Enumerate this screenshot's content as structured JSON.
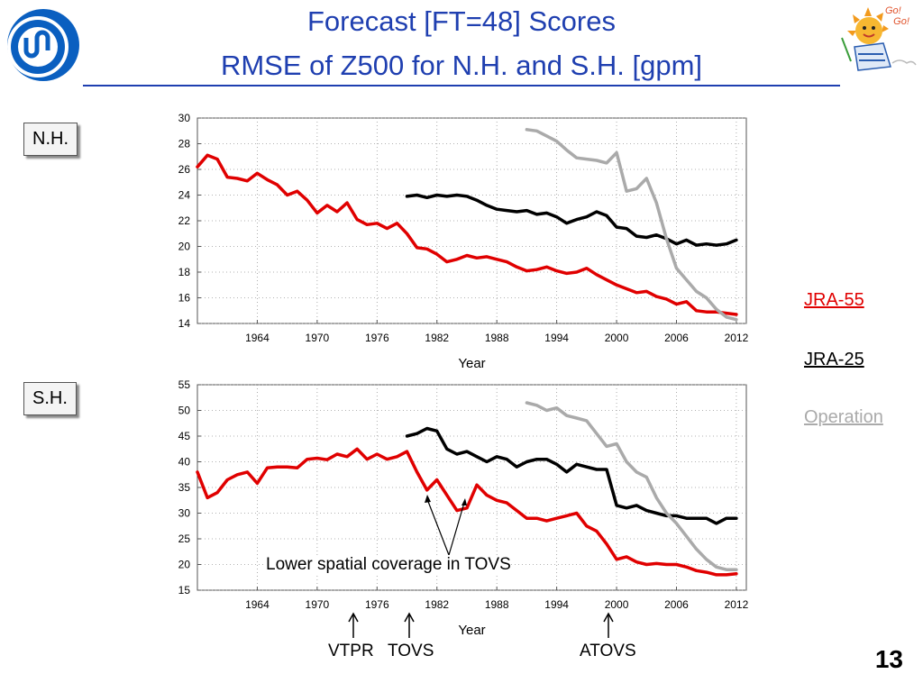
{
  "title": {
    "line1": "Forecast [FT=48] Scores",
    "line2": "RMSE of Z500 for N.H. and S.H. [gpm]"
  },
  "legend": {
    "jra55": {
      "label": "JRA-55",
      "color": "#e00000"
    },
    "jra25": {
      "label": "JRA-25",
      "color": "#000000"
    },
    "operation": {
      "label": "Operation",
      "color": "#aaaaaa"
    }
  },
  "annotations": {
    "tovs_note": "Lower spatial coverage in TOVS",
    "vtpr": "VTPR",
    "tovs": "TOVS",
    "atovs": "ATOVS"
  },
  "page_number": "13",
  "chart_data": [
    {
      "type": "line",
      "region_label": "N.H.",
      "xlabel": "Year",
      "ylabel": "",
      "xlim": [
        1958,
        2013
      ],
      "ylim": [
        14,
        30
      ],
      "xticks": [
        1964,
        1970,
        1976,
        1982,
        1988,
        1994,
        2000,
        2006,
        2012
      ],
      "yticks": [
        14,
        16,
        18,
        20,
        22,
        24,
        26,
        28,
        30
      ],
      "grid": true,
      "series": [
        {
          "name": "JRA-55",
          "color": "#e00000",
          "points": [
            [
              1958,
              26.2
            ],
            [
              1959,
              27.1
            ],
            [
              1960,
              26.8
            ],
            [
              1961,
              25.4
            ],
            [
              1962,
              25.3
            ],
            [
              1963,
              25.1
            ],
            [
              1964,
              25.7
            ],
            [
              1965,
              25.2
            ],
            [
              1966,
              24.8
            ],
            [
              1967,
              24.0
            ],
            [
              1968,
              24.3
            ],
            [
              1969,
              23.6
            ],
            [
              1970,
              22.6
            ],
            [
              1971,
              23.2
            ],
            [
              1972,
              22.7
            ],
            [
              1973,
              23.4
            ],
            [
              1974,
              22.1
            ],
            [
              1975,
              21.7
            ],
            [
              1976,
              21.8
            ],
            [
              1977,
              21.4
            ],
            [
              1978,
              21.8
            ],
            [
              1979,
              21.0
            ],
            [
              1980,
              19.9
            ],
            [
              1981,
              19.8
            ],
            [
              1982,
              19.4
            ],
            [
              1983,
              18.8
            ],
            [
              1984,
              19.0
            ],
            [
              1985,
              19.3
            ],
            [
              1986,
              19.1
            ],
            [
              1987,
              19.2
            ],
            [
              1988,
              19.0
            ],
            [
              1989,
              18.8
            ],
            [
              1990,
              18.4
            ],
            [
              1991,
              18.1
            ],
            [
              1992,
              18.2
            ],
            [
              1993,
              18.4
            ],
            [
              1994,
              18.1
            ],
            [
              1995,
              17.9
            ],
            [
              1996,
              18.0
            ],
            [
              1997,
              18.3
            ],
            [
              1998,
              17.8
            ],
            [
              1999,
              17.4
            ],
            [
              2000,
              17.0
            ],
            [
              2001,
              16.7
            ],
            [
              2002,
              16.4
            ],
            [
              2003,
              16.5
            ],
            [
              2004,
              16.1
            ],
            [
              2005,
              15.9
            ],
            [
              2006,
              15.5
            ],
            [
              2007,
              15.7
            ],
            [
              2008,
              15.0
            ],
            [
              2009,
              14.9
            ],
            [
              2010,
              14.9
            ],
            [
              2011,
              14.8
            ],
            [
              2012,
              14.7
            ]
          ]
        },
        {
          "name": "JRA-25",
          "color": "#000000",
          "points": [
            [
              1979,
              23.9
            ],
            [
              1980,
              24.0
            ],
            [
              1981,
              23.8
            ],
            [
              1982,
              24.0
            ],
            [
              1983,
              23.9
            ],
            [
              1984,
              24.0
            ],
            [
              1985,
              23.9
            ],
            [
              1986,
              23.6
            ],
            [
              1987,
              23.2
            ],
            [
              1988,
              22.9
            ],
            [
              1989,
              22.8
            ],
            [
              1990,
              22.7
            ],
            [
              1991,
              22.8
            ],
            [
              1992,
              22.5
            ],
            [
              1993,
              22.6
            ],
            [
              1994,
              22.3
            ],
            [
              1995,
              21.8
            ],
            [
              1996,
              22.1
            ],
            [
              1997,
              22.3
            ],
            [
              1998,
              22.7
            ],
            [
              1999,
              22.4
            ],
            [
              2000,
              21.5
            ],
            [
              2001,
              21.4
            ],
            [
              2002,
              20.8
            ],
            [
              2003,
              20.7
            ],
            [
              2004,
              20.9
            ],
            [
              2005,
              20.6
            ],
            [
              2006,
              20.2
            ],
            [
              2007,
              20.5
            ],
            [
              2008,
              20.1
            ],
            [
              2009,
              20.2
            ],
            [
              2010,
              20.1
            ],
            [
              2011,
              20.2
            ],
            [
              2012,
              20.5
            ]
          ]
        },
        {
          "name": "Operation",
          "color": "#aaaaaa",
          "points": [
            [
              1991,
              29.1
            ],
            [
              1992,
              29.0
            ],
            [
              1993,
              28.6
            ],
            [
              1994,
              28.2
            ],
            [
              1995,
              27.5
            ],
            [
              1996,
              26.9
            ],
            [
              1997,
              26.8
            ],
            [
              1998,
              26.7
            ],
            [
              1999,
              26.5
            ],
            [
              2000,
              27.3
            ],
            [
              2001,
              24.3
            ],
            [
              2002,
              24.5
            ],
            [
              2003,
              25.3
            ],
            [
              2004,
              23.4
            ],
            [
              2005,
              20.6
            ],
            [
              2006,
              18.3
            ],
            [
              2007,
              17.4
            ],
            [
              2008,
              16.5
            ],
            [
              2009,
              16.0
            ],
            [
              2010,
              15.1
            ],
            [
              2011,
              14.5
            ],
            [
              2012,
              14.3
            ]
          ]
        }
      ]
    },
    {
      "type": "line",
      "region_label": "S.H.",
      "xlabel": "Year",
      "ylabel": "",
      "xlim": [
        1958,
        2013
      ],
      "ylim": [
        15,
        55
      ],
      "xticks": [
        1964,
        1970,
        1976,
        1982,
        1988,
        1994,
        2000,
        2006,
        2012
      ],
      "yticks": [
        15,
        20,
        25,
        30,
        35,
        40,
        45,
        50,
        55
      ],
      "grid": true,
      "series": [
        {
          "name": "JRA-55",
          "color": "#e00000",
          "points": [
            [
              1958,
              38.0
            ],
            [
              1959,
              33.0
            ],
            [
              1960,
              34.0
            ],
            [
              1961,
              36.5
            ],
            [
              1962,
              37.5
            ],
            [
              1963,
              38.0
            ],
            [
              1964,
              35.8
            ],
            [
              1965,
              38.8
            ],
            [
              1966,
              39.0
            ],
            [
              1967,
              39.0
            ],
            [
              1968,
              38.8
            ],
            [
              1969,
              40.5
            ],
            [
              1970,
              40.7
            ],
            [
              1971,
              40.4
            ],
            [
              1972,
              41.5
            ],
            [
              1973,
              41.0
            ],
            [
              1974,
              42.5
            ],
            [
              1975,
              40.5
            ],
            [
              1976,
              41.5
            ],
            [
              1977,
              40.5
            ],
            [
              1978,
              41.0
            ],
            [
              1979,
              42.0
            ],
            [
              1980,
              38.0
            ],
            [
              1981,
              34.5
            ],
            [
              1982,
              36.5
            ],
            [
              1983,
              33.5
            ],
            [
              1984,
              30.5
            ],
            [
              1985,
              31.0
            ],
            [
              1986,
              35.5
            ],
            [
              1987,
              33.5
            ],
            [
              1988,
              32.5
            ],
            [
              1989,
              32.0
            ],
            [
              1990,
              30.5
            ],
            [
              1991,
              29.0
            ],
            [
              1992,
              29.0
            ],
            [
              1993,
              28.5
            ],
            [
              1994,
              29.0
            ],
            [
              1995,
              29.5
            ],
            [
              1996,
              30.0
            ],
            [
              1997,
              27.5
            ],
            [
              1998,
              26.5
            ],
            [
              1999,
              24.0
            ],
            [
              2000,
              21.0
            ],
            [
              2001,
              21.5
            ],
            [
              2002,
              20.5
            ],
            [
              2003,
              20.0
            ],
            [
              2004,
              20.2
            ],
            [
              2005,
              20.0
            ],
            [
              2006,
              20.0
            ],
            [
              2007,
              19.5
            ],
            [
              2008,
              18.8
            ],
            [
              2009,
              18.5
            ],
            [
              2010,
              18.0
            ],
            [
              2011,
              18.0
            ],
            [
              2012,
              18.2
            ]
          ]
        },
        {
          "name": "JRA-25",
          "color": "#000000",
          "points": [
            [
              1979,
              45.0
            ],
            [
              1980,
              45.5
            ],
            [
              1981,
              46.5
            ],
            [
              1982,
              46.0
            ],
            [
              1983,
              42.5
            ],
            [
              1984,
              41.5
            ],
            [
              1985,
              42.0
            ],
            [
              1986,
              41.0
            ],
            [
              1987,
              40.0
            ],
            [
              1988,
              41.0
            ],
            [
              1989,
              40.5
            ],
            [
              1990,
              39.0
            ],
            [
              1991,
              40.0
            ],
            [
              1992,
              40.5
            ],
            [
              1993,
              40.5
            ],
            [
              1994,
              39.5
            ],
            [
              1995,
              38.0
            ],
            [
              1996,
              39.5
            ],
            [
              1997,
              39.0
            ],
            [
              1998,
              38.5
            ],
            [
              1999,
              38.5
            ],
            [
              2000,
              31.5
            ],
            [
              2001,
              31.0
            ],
            [
              2002,
              31.5
            ],
            [
              2003,
              30.5
            ],
            [
              2004,
              30.0
            ],
            [
              2005,
              29.5
            ],
            [
              2006,
              29.5
            ],
            [
              2007,
              29.0
            ],
            [
              2008,
              29.0
            ],
            [
              2009,
              29.0
            ],
            [
              2010,
              28.0
            ],
            [
              2011,
              29.0
            ],
            [
              2012,
              29.0
            ]
          ]
        },
        {
          "name": "Operation",
          "color": "#aaaaaa",
          "points": [
            [
              1991,
              51.5
            ],
            [
              1992,
              51.0
            ],
            [
              1993,
              50.0
            ],
            [
              1994,
              50.5
            ],
            [
              1995,
              49.0
            ],
            [
              1996,
              48.5
            ],
            [
              1997,
              48.0
            ],
            [
              1998,
              45.5
            ],
            [
              1999,
              43.0
            ],
            [
              2000,
              43.5
            ],
            [
              2001,
              40.0
            ],
            [
              2002,
              38.0
            ],
            [
              2003,
              37.0
            ],
            [
              2004,
              33.0
            ],
            [
              2005,
              30.0
            ],
            [
              2006,
              28.0
            ],
            [
              2007,
              25.5
            ],
            [
              2008,
              23.0
            ],
            [
              2009,
              21.0
            ],
            [
              2010,
              19.5
            ],
            [
              2011,
              19.0
            ],
            [
              2012,
              19.0
            ]
          ]
        }
      ]
    }
  ]
}
